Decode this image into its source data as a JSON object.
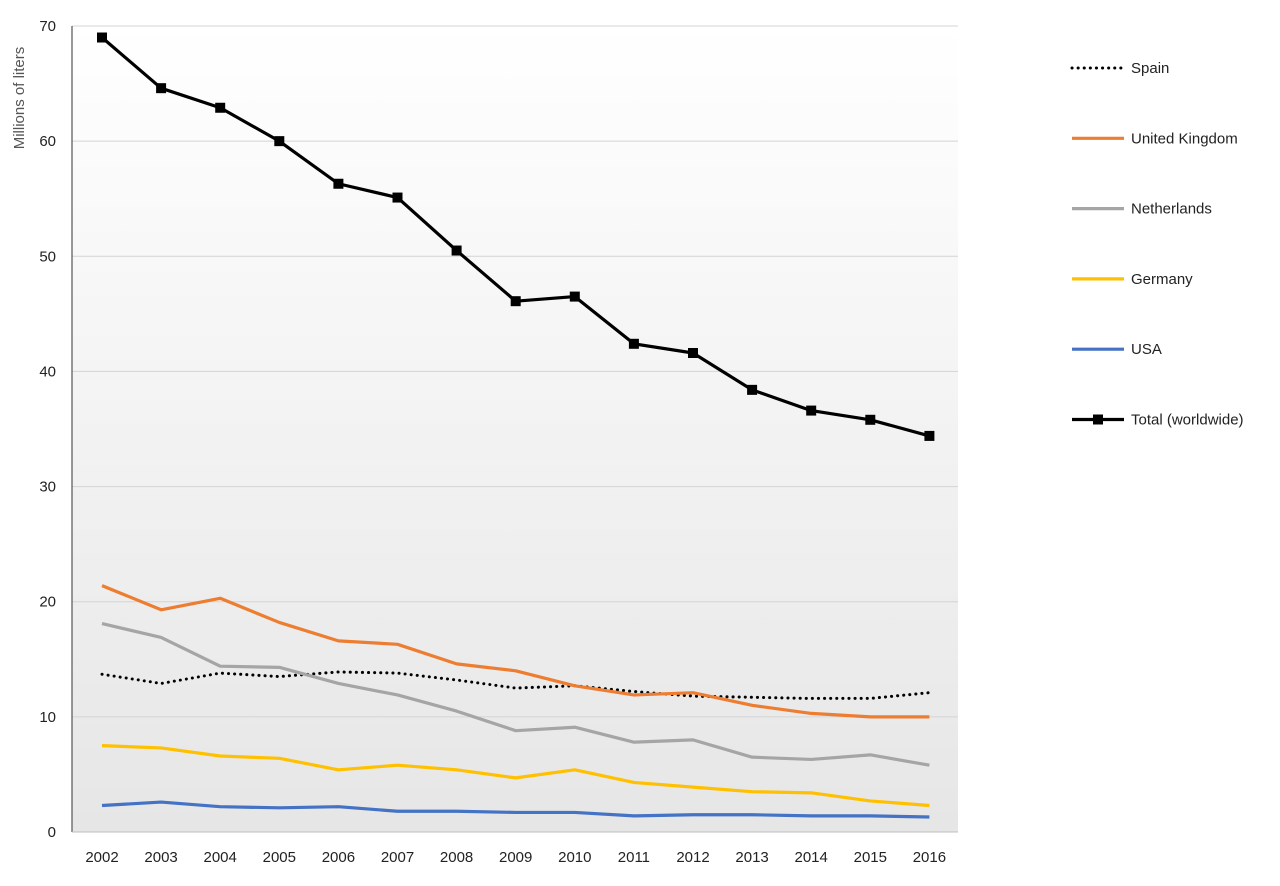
{
  "chart_data": {
    "type": "line",
    "title": "",
    "xlabel": "",
    "ylabel": "Millions of liters",
    "ylim": [
      0,
      70
    ],
    "y_ticks": [
      0,
      10,
      20,
      30,
      40,
      50,
      60,
      70
    ],
    "grid": true,
    "legend_position": "right",
    "categories": [
      "2002",
      "2003",
      "2004",
      "2005",
      "2006",
      "2007",
      "2008",
      "2009",
      "2010",
      "2011",
      "2012",
      "2013",
      "2014",
      "2015",
      "2016"
    ],
    "series": [
      {
        "name": "Spain",
        "color": "#000000",
        "style": "dotted",
        "marker": "none",
        "values": [
          13.7,
          12.9,
          13.8,
          13.5,
          13.9,
          13.8,
          13.2,
          12.5,
          12.7,
          12.2,
          11.8,
          11.7,
          11.6,
          11.6,
          12.1
        ]
      },
      {
        "name": "United Kingdom",
        "color": "#ED7D31",
        "style": "solid",
        "marker": "none",
        "values": [
          21.4,
          19.3,
          20.3,
          18.2,
          16.6,
          16.3,
          14.6,
          14.0,
          12.7,
          11.9,
          12.1,
          11.0,
          10.3,
          10.0,
          10.0
        ]
      },
      {
        "name": "Netherlands",
        "color": "#A5A5A5",
        "style": "solid",
        "marker": "none",
        "values": [
          18.1,
          16.9,
          14.4,
          14.3,
          12.9,
          11.9,
          10.5,
          8.8,
          9.1,
          7.8,
          8.0,
          6.5,
          6.3,
          6.7,
          5.8
        ]
      },
      {
        "name": "Germany",
        "color": "#FFC000",
        "style": "solid",
        "marker": "none",
        "values": [
          7.5,
          7.3,
          6.6,
          6.4,
          5.4,
          5.8,
          5.4,
          4.7,
          5.4,
          4.3,
          3.9,
          3.5,
          3.4,
          2.7,
          2.3
        ]
      },
      {
        "name": "USA",
        "color": "#4472C4",
        "style": "solid",
        "marker": "none",
        "values": [
          2.3,
          2.6,
          2.2,
          2.1,
          2.2,
          1.8,
          1.8,
          1.7,
          1.7,
          1.4,
          1.5,
          1.5,
          1.4,
          1.4,
          1.3
        ]
      },
      {
        "name": "Total (worldwide)",
        "color": "#000000",
        "style": "solid",
        "marker": "square",
        "values": [
          69.0,
          64.6,
          62.9,
          60.0,
          56.3,
          55.1,
          50.5,
          46.1,
          46.5,
          42.4,
          41.6,
          38.4,
          36.6,
          35.8,
          34.4
        ]
      }
    ]
  }
}
